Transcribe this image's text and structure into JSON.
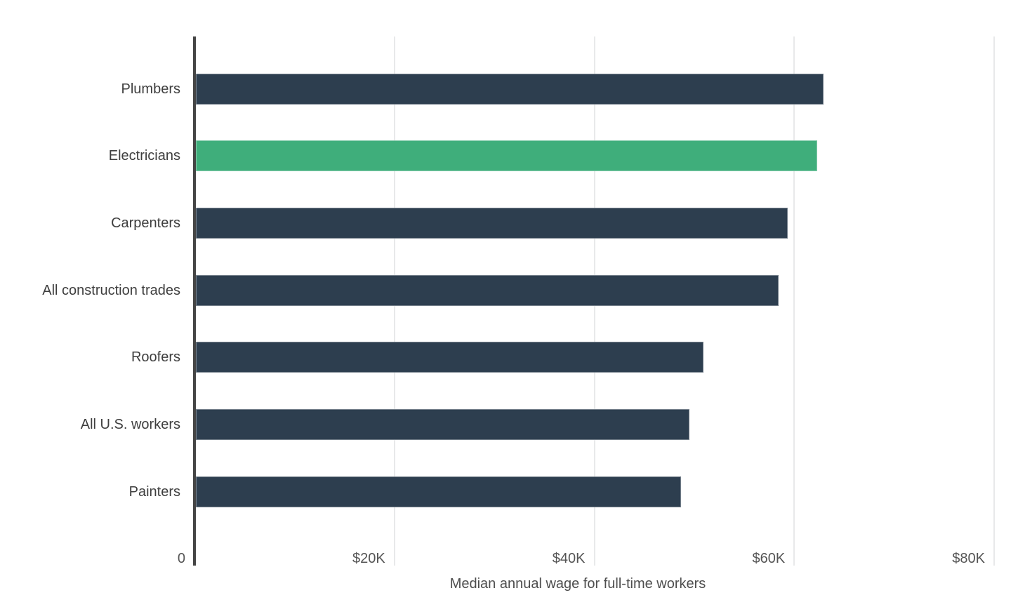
{
  "chart_data": {
    "type": "bar",
    "orientation": "horizontal",
    "title": "",
    "xlabel": "Median annual wage for full-time workers",
    "ylabel": "",
    "categories": [
      "Plumbers",
      "Electricians",
      "Carpenters",
      "All construction trades",
      "Roofers",
      "All U.S. workers",
      "Painters"
    ],
    "values": [
      62900,
      62300,
      59350,
      58450,
      50950,
      49550,
      48700
    ],
    "highlight_category": "Electricians",
    "highlight_index": 1,
    "xlim": [
      0,
      80000
    ],
    "xticks": [
      0,
      20000,
      40000,
      60000,
      80000
    ],
    "xtick_labels": [
      "0",
      "$20K",
      "$40K",
      "$60K",
      "$80K"
    ],
    "grid": "vertical-gridlines-on",
    "legend": "none",
    "colors": {
      "bar": "#2d3e4f",
      "highlight": "#3fae7b",
      "gridline": "#e8e9ea",
      "axis_line": "#454545",
      "label_text": "#3e3e3e",
      "tick_text": "#555555",
      "axis_title_text": "#4e4e4e"
    }
  }
}
